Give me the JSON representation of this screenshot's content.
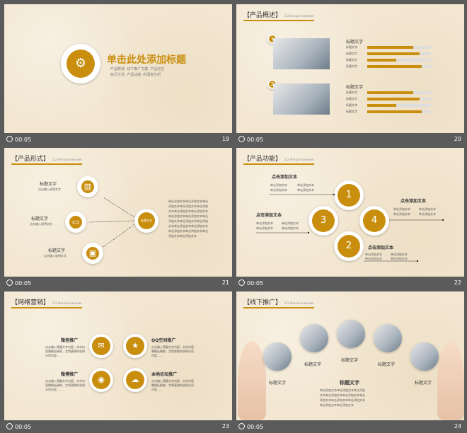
{
  "slides": [
    {
      "number": "19",
      "time": "00:05",
      "title": "单击此处添加标题",
      "bullets": [
        "产品概述",
        "线下推广方案",
        "产品定位",
        "执行方法",
        "产品功能",
        "利润率分析"
      ]
    },
    {
      "number": "20",
      "time": "00:05",
      "section": "【产品概述】",
      "sub": "1.2 Annual overview",
      "groups": [
        {
          "badge": "1",
          "heading": "标题文字",
          "rows": [
            "标题文字",
            "标题文字",
            "标题文字",
            "标题文字"
          ],
          "fills": [
            0.72,
            0.82,
            0.45,
            0.85
          ]
        },
        {
          "badge": "2",
          "heading": "标题文字",
          "rows": [
            "标题文字",
            "标题文字",
            "标题文字",
            "标题文字"
          ],
          "fills": [
            0.72,
            0.82,
            0.45,
            0.85
          ]
        }
      ]
    },
    {
      "number": "21",
      "time": "00:05",
      "section": "【产品形式】",
      "sub": "1.2 Annual overview",
      "items": [
        {
          "title": "标题文字",
          "desc": "点击输入说明文字"
        },
        {
          "title": "标题文字",
          "desc": "点击输入说明文字"
        },
        {
          "title": "标题文字",
          "desc": "点击输入说明文字"
        }
      ],
      "center": "标题文本",
      "text": [
        "单击添加文本单击添加文本单击",
        "添加文本单击添加文本单击添加",
        "文本单击添加文本单击添加文本",
        "单击添加文本单击添加文本单击",
        "添加文本单击添加文本单击添加",
        "文本单击添加文本单击添加文本",
        "单击添加文本单击添加文本单击",
        "添加文本单击添加文本"
      ]
    },
    {
      "number": "22",
      "time": "00:05",
      "section": "【产品功能】",
      "sub": "1.2 Annual overview",
      "nodes": [
        {
          "n": "1",
          "title": "点击添加文本"
        },
        {
          "n": "3",
          "title": "点击添加文本"
        },
        {
          "n": "4",
          "title": "点击添加文本"
        },
        {
          "n": "2",
          "title": "点击添加文本"
        }
      ],
      "cell": "单击添加文本"
    },
    {
      "number": "23",
      "time": "00:05",
      "section": "【网络营销】",
      "sub": "1.2 Annual overview",
      "items": [
        {
          "title": "微信推广",
          "desc": "点击输入简要文字内容，文字内容需概括精炼，言简意赅的说明分项内容……"
        },
        {
          "title": "QQ空间推广",
          "desc": "点击输入简要文字内容，文字内容需概括精炼，言简意赅的说明分项内容……"
        },
        {
          "title": "微博推广",
          "desc": "点击输入简要文字内容，文字内容需概括精炼，言简意赅的说明分项内容……"
        },
        {
          "title": "本地论坛推广",
          "desc": "点击输入简要文字内容，文字内容需概括精炼，言简意赅的说明分项内容……"
        }
      ]
    },
    {
      "number": "24",
      "time": "00:05",
      "section": "【线下推广】",
      "sub": "1.2 Annual overview",
      "labels": [
        "标题文字",
        "标题文字",
        "标题文字",
        "标题文字",
        "标题文字"
      ],
      "center_title": "标题文字",
      "center_text": [
        "单击添加文本单击添加文本单击添加",
        "文本单击添加文本单击添加文本单击",
        "添加文本单击添加文本单击添加文本",
        "单击添加文本单击添加文本"
      ]
    }
  ],
  "colors": {
    "accent": "#c98e0e",
    "slide_bg": "#f3e7d2",
    "frame_bg": "#5b5b5b"
  }
}
